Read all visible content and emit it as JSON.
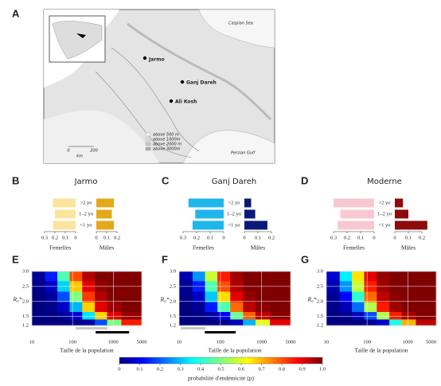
{
  "map": {
    "label": "A",
    "sites": [
      "Jarmo",
      "Ganj Dareh",
      "Ali Kosh"
    ],
    "seas": [
      "Caspian Sea",
      "Persian Gulf"
    ],
    "legend": [
      "above 500 m",
      "above 1000m",
      "above 2000 m",
      "above 3000m"
    ],
    "scale": [
      "0",
      "200",
      "km"
    ]
  },
  "chart_data": [
    {
      "type": "pyramid",
      "label": "B",
      "title": "Jarmo",
      "categories": [
        ">2 yo",
        "1–2 yo",
        "<1 yo"
      ],
      "xlim": [
        0,
        0.3
      ],
      "series": [
        {
          "name": "Femelles",
          "color": "#fae59c",
          "values": [
            0.22,
            0.2,
            0.22
          ],
          "xticks": [
            0.3,
            0.2,
            0.1,
            0
          ]
        },
        {
          "name": "Mâles",
          "color": "#e3a81c",
          "values": [
            0.17,
            0.15,
            0.17
          ],
          "xticks": [
            0,
            0.1,
            0.2
          ]
        }
      ]
    },
    {
      "type": "pyramid",
      "label": "C",
      "title": "Ganj Dareh",
      "categories": [
        ">2 yo",
        "1–2 yo",
        "<1 yo"
      ],
      "xlim": [
        0,
        0.3
      ],
      "series": [
        {
          "name": "Femelles",
          "color": "#1fb6ea",
          "values": [
            0.26,
            0.21,
            0.23
          ],
          "xticks": [
            0.3,
            0.2,
            0.1,
            0
          ]
        },
        {
          "name": "Mâles",
          "color": "#0b1a78",
          "values": [
            0.05,
            0.08,
            0.17
          ],
          "xticks": [
            0,
            0.1,
            0.2
          ]
        }
      ]
    },
    {
      "type": "pyramid",
      "label": "D",
      "title": "Moderne",
      "categories": [
        ">2 yo",
        "1–2 yo",
        "<1 yo"
      ],
      "xlim": [
        0,
        0.3
      ],
      "series": [
        {
          "name": "Femelles",
          "color": "#f8c8d0",
          "values": [
            0.3,
            0.25,
            0.27
          ],
          "xticks": [
            0.3,
            0.2,
            0.1,
            0
          ]
        },
        {
          "name": "Mâles",
          "color": "#8c0b0b",
          "values": [
            0.06,
            0.1,
            0.24
          ],
          "xticks": [
            0,
            0.1,
            0.2
          ]
        }
      ]
    },
    {
      "type": "heatmap",
      "label": "E",
      "xlabel": "Taille de la population",
      "ylabel": "R₀*",
      "xscale": "log",
      "grid": true,
      "colormap": "jet",
      "xlim": [
        10,
        5000
      ],
      "xticks": [
        10,
        100,
        1000,
        5000
      ],
      "ylim": [
        1.2,
        3.0
      ],
      "yticks": [
        1.2,
        1.5,
        {
          "value": 2,
          "label": "2.0"
        },
        2.5,
        {
          "value": 3,
          "label": "3.0"
        }
      ],
      "x": [
        15,
        30,
        60,
        120,
        250,
        500,
        1000,
        2500
      ],
      "y": [
        2.85,
        2.5,
        2.15,
        1.8,
        1.5,
        1.3
      ],
      "values": [
        [
          0.02,
          0.15,
          0.45,
          0.8,
          0.95,
          1,
          1,
          1
        ],
        [
          0.01,
          0.07,
          0.33,
          0.68,
          0.9,
          0.98,
          1,
          1
        ],
        [
          0,
          0.03,
          0.2,
          0.5,
          0.82,
          0.95,
          1,
          1
        ],
        [
          0,
          0.01,
          0.07,
          0.3,
          0.67,
          0.9,
          0.97,
          1
        ],
        [
          0,
          0,
          0.02,
          0.08,
          0.35,
          0.67,
          0.9,
          0.98
        ],
        [
          0,
          0,
          0,
          0.01,
          0.03,
          0.2,
          0.5,
          0.85
        ]
      ],
      "ranges": [
        {
          "color": "#c8c8c8",
          "values": [
            120,
            720
          ]
        },
        {
          "color": "#000000",
          "values": [
            370,
            2450
          ]
        }
      ]
    },
    {
      "type": "heatmap",
      "label": "F",
      "xlabel": "Taille de la population",
      "ylabel": "R₀*",
      "xscale": "log",
      "grid": true,
      "colormap": "jet",
      "xlim": [
        10,
        5000
      ],
      "xticks": [
        10,
        100,
        1000,
        5000
      ],
      "ylim": [
        1.2,
        3.0
      ],
      "yticks": [
        1.2,
        1.5,
        {
          "value": 2,
          "label": "2.0"
        },
        2.5,
        {
          "value": 3,
          "label": "3.0"
        }
      ],
      "x": [
        15,
        30,
        60,
        120,
        250,
        500,
        1000,
        2500
      ],
      "y": [
        2.85,
        2.5,
        2.15,
        1.8,
        1.5,
        1.3
      ],
      "values": [
        [
          0.05,
          0.27,
          0.57,
          0.85,
          0.97,
          1,
          1,
          1
        ],
        [
          0.02,
          0.15,
          0.45,
          0.8,
          0.95,
          1,
          1,
          1
        ],
        [
          0.01,
          0.07,
          0.32,
          0.66,
          0.9,
          0.98,
          1,
          1
        ],
        [
          0,
          0.02,
          0.15,
          0.45,
          0.77,
          0.94,
          0.99,
          1
        ],
        [
          0,
          0,
          0.03,
          0.12,
          0.48,
          0.78,
          0.94,
          0.99
        ],
        [
          0,
          0,
          0,
          0.01,
          0.06,
          0.3,
          0.6,
          0.9
        ]
      ],
      "ranges": [
        {
          "color": "#c8c8c8",
          "values": [
            11,
            43
          ]
        },
        {
          "color": "#000000",
          "values": [
            42,
            235
          ]
        }
      ]
    },
    {
      "type": "heatmap",
      "label": "G",
      "xlabel": "Taille de la population",
      "ylabel": "R₀*",
      "xscale": "log",
      "grid": true,
      "colormap": "jet",
      "xlim": [
        10,
        5000
      ],
      "xticks": [
        10,
        100,
        1000,
        5000
      ],
      "ylim": [
        1.2,
        3.0
      ],
      "yticks": [
        1.2,
        1.5,
        {
          "value": 2,
          "label": "2.0"
        },
        2.5,
        {
          "value": 3,
          "label": "3.0"
        }
      ],
      "x": [
        15,
        30,
        60,
        120,
        250,
        500,
        1000,
        2500
      ],
      "y": [
        2.85,
        2.5,
        2.15,
        1.8,
        1.5,
        1.3
      ],
      "values": [
        [
          0.08,
          0.36,
          0.65,
          0.9,
          0.98,
          1,
          1,
          1
        ],
        [
          0.05,
          0.27,
          0.57,
          0.85,
          0.97,
          1,
          1,
          1
        ],
        [
          0.02,
          0.13,
          0.42,
          0.77,
          0.94,
          0.99,
          1,
          1
        ],
        [
          0.01,
          0.05,
          0.23,
          0.55,
          0.85,
          0.97,
          1,
          1
        ],
        [
          0,
          0.01,
          0.06,
          0.2,
          0.55,
          0.85,
          0.96,
          1
        ],
        [
          0,
          0,
          0,
          0.02,
          0.08,
          0.4,
          0.7,
          0.94
        ]
      ]
    },
    {
      "type": "colorbar",
      "colormap": "jet",
      "title": "probabilité d'endémicité (p)",
      "xlim": [
        0,
        1
      ],
      "xticks": [
        0,
        0.1,
        0.2,
        0.3,
        0.4,
        0.5,
        0.6,
        0.7,
        0.8,
        0.9,
        {
          "value": 1,
          "label": "1.0"
        }
      ]
    }
  ]
}
